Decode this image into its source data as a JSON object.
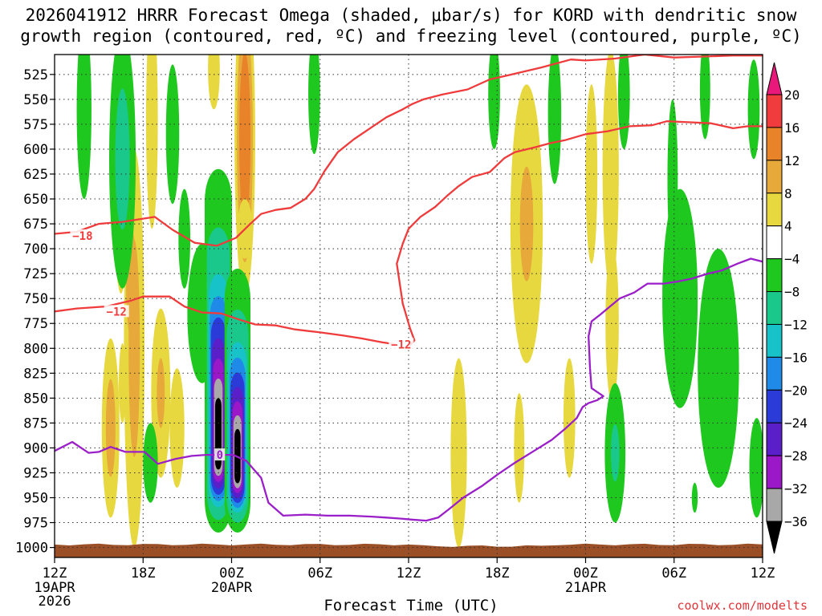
{
  "title": "2026041912 HRRR Forecast Omega (shaded, μbar/s) for KORD with dendritic snow\ngrowth region (contoured, red, ºC) and freezing level (contoured, purple, ºC)",
  "credit": "coolwx.com/modelts",
  "chart_data": {
    "type": "heatmap",
    "title": "2026041912 HRRR Forecast Omega (shaded, μbar/s) for KORD with dendritic snow growth region (contoured, red, ºC) and freezing level (contoured, purple, ºC)",
    "xlabel": "Forecast Time (UTC)",
    "ylabel": "",
    "x_unit": "forecast hour",
    "xlim": [
      0,
      48
    ],
    "ylim": [
      1010,
      505
    ],
    "y_axis": "pressure (mb), decreasing upward",
    "grid": true,
    "x_ticks": [
      {
        "hour": 0,
        "label": "12Z",
        "sub": [
          "19APR",
          "2026"
        ]
      },
      {
        "hour": 6,
        "label": "18Z",
        "sub": []
      },
      {
        "hour": 12,
        "label": "00Z",
        "sub": [
          "20APR"
        ]
      },
      {
        "hour": 18,
        "label": "06Z",
        "sub": []
      },
      {
        "hour": 24,
        "label": "12Z",
        "sub": []
      },
      {
        "hour": 30,
        "label": "18Z",
        "sub": []
      },
      {
        "hour": 36,
        "label": "00Z",
        "sub": [
          "21APR"
        ]
      },
      {
        "hour": 42,
        "label": "06Z",
        "sub": []
      },
      {
        "hour": 48,
        "label": "12Z",
        "sub": []
      }
    ],
    "y_ticks": [
      525,
      550,
      575,
      600,
      625,
      650,
      675,
      700,
      725,
      750,
      775,
      800,
      825,
      850,
      875,
      900,
      925,
      950,
      975,
      1000
    ],
    "colorbar": {
      "placement": "right",
      "unit": "μbar/s",
      "labels": [
        "20",
        "16",
        "12",
        "8",
        "4",
        "−4",
        "−8",
        "−12",
        "−16",
        "−20",
        "−24",
        "−28",
        "−32",
        "−36"
      ],
      "bins": [
        {
          "low": 20,
          "high": null,
          "color": "#e8197a"
        },
        {
          "low": 16,
          "high": 20,
          "color": "#f03c3c"
        },
        {
          "low": 12,
          "high": 16,
          "color": "#e8832a"
        },
        {
          "low": 8,
          "high": 12,
          "color": "#e6a93a"
        },
        {
          "low": 4,
          "high": 8,
          "color": "#e8d840"
        },
        {
          "low": -4,
          "high": 4,
          "color": "#ffffff"
        },
        {
          "low": -8,
          "high": -4,
          "color": "#1fc81f"
        },
        {
          "low": -12,
          "high": -8,
          "color": "#19c88a"
        },
        {
          "low": -16,
          "high": -12,
          "color": "#17c3c8"
        },
        {
          "low": -20,
          "high": -16,
          "color": "#1f8ae8"
        },
        {
          "low": -24,
          "high": -20,
          "color": "#2b3bd8"
        },
        {
          "low": -28,
          "high": -24,
          "color": "#5a1fc8"
        },
        {
          "low": -32,
          "high": -28,
          "color": "#9a18c8"
        },
        {
          "low": -36,
          "high": -32,
          "color": "#a8a8a8"
        },
        {
          "low": null,
          "high": -36,
          "color": "#000000"
        }
      ]
    },
    "omega_cells": [
      {
        "x": 4.5,
        "p": 635,
        "dx": 0.5,
        "dp": 110,
        "levels": [
          6,
          7
        ]
      },
      {
        "x": 4.6,
        "p": 835,
        "dx": 0.25,
        "dp": 40,
        "levels": [
          5
        ]
      },
      {
        "x": 3.8,
        "p": 880,
        "dx": 0.6,
        "dp": 90,
        "levels": [
          5,
          7,
          9,
          11
        ]
      },
      {
        "x": 5.4,
        "p": 800,
        "dx": 0.7,
        "dp": 200,
        "levels": [
          5,
          7,
          9,
          11
        ]
      },
      {
        "x": 5.2,
        "p": 735,
        "dx": 0.35,
        "dp": 55,
        "levels": [
          10
        ]
      },
      {
        "x": 6.6,
        "p": 570,
        "dx": 0.4,
        "dp": 110,
        "levels": [
          5,
          7
        ]
      },
      {
        "x": 7.2,
        "p": 845,
        "dx": 0.65,
        "dp": 85,
        "levels": [
          5,
          7,
          9
        ]
      },
      {
        "x": 8.3,
        "p": 880,
        "dx": 0.5,
        "dp": 60,
        "levels": [
          5
        ]
      },
      {
        "x": 10.8,
        "p": 520,
        "dx": 0.4,
        "dp": 40,
        "levels": [
          5
        ]
      },
      {
        "x": 12.9,
        "p": 590,
        "dx": 0.7,
        "dp": 160,
        "levels": [
          5,
          9,
          12,
          15
        ]
      },
      {
        "x": 12.9,
        "p": 680,
        "dx": 0.5,
        "dp": 30,
        "levels": [
          5
        ]
      },
      {
        "x": 27.4,
        "p": 905,
        "dx": 0.55,
        "dp": 95,
        "levels": [
          5,
          7
        ]
      },
      {
        "x": 31.5,
        "p": 900,
        "dx": 0.35,
        "dp": 55,
        "levels": [
          5
        ]
      },
      {
        "x": 32.0,
        "p": 675,
        "dx": 1.1,
        "dp": 140,
        "levels": [
          5,
          7,
          9
        ]
      },
      {
        "x": 34.9,
        "p": 870,
        "dx": 0.4,
        "dp": 60,
        "levels": [
          5
        ]
      },
      {
        "x": 36.4,
        "p": 625,
        "dx": 0.4,
        "dp": 90,
        "levels": [
          5
        ]
      },
      {
        "x": 37.7,
        "p": 620,
        "dx": 0.55,
        "dp": 120,
        "levels": [
          5
        ]
      },
      {
        "x": 37.8,
        "p": 775,
        "dx": 0.45,
        "dp": 80,
        "levels": [
          5
        ]
      },
      {
        "x": 2.0,
        "p": 560,
        "dx": 0.5,
        "dp": 90,
        "levels": [
          -5,
          -7
        ]
      },
      {
        "x": 4.6,
        "p": 610,
        "dx": 0.9,
        "dp": 130,
        "levels": [
          -5,
          -7,
          -9,
          -11
        ]
      },
      {
        "x": 8.0,
        "p": 585,
        "dx": 0.45,
        "dp": 70,
        "levels": [
          -5
        ]
      },
      {
        "x": 6.5,
        "p": 915,
        "dx": 0.5,
        "dp": 40,
        "levels": [
          -5
        ]
      },
      {
        "x": 8.8,
        "p": 690,
        "dx": 0.4,
        "dp": 50,
        "levels": [
          -5
        ]
      },
      {
        "x": 10.0,
        "p": 765,
        "dx": 1.0,
        "dp": 70,
        "levels": [
          -5
        ]
      },
      {
        "x": 17.6,
        "p": 545,
        "dx": 0.4,
        "dp": 60,
        "levels": [
          -5
        ]
      },
      {
        "x": 29.8,
        "p": 545,
        "dx": 0.4,
        "dp": 55,
        "levels": [
          -5
        ]
      },
      {
        "x": 33.9,
        "p": 565,
        "dx": 0.45,
        "dp": 70,
        "levels": [
          -5
        ]
      },
      {
        "x": 38.6,
        "p": 545,
        "dx": 0.4,
        "dp": 55,
        "levels": [
          -5
        ]
      },
      {
        "x": 44.1,
        "p": 540,
        "dx": 0.35,
        "dp": 50,
        "levels": [
          -5
        ]
      },
      {
        "x": 47.4,
        "p": 560,
        "dx": 0.4,
        "dp": 50,
        "levels": [
          -5
        ]
      },
      {
        "x": 41.9,
        "p": 630,
        "dx": 0.35,
        "dp": 80,
        "levels": [
          -5
        ]
      },
      {
        "x": 42.4,
        "p": 750,
        "dx": 1.2,
        "dp": 110,
        "levels": [
          -5
        ]
      },
      {
        "x": 45.0,
        "p": 820,
        "dx": 1.4,
        "dp": 120,
        "levels": [
          -5
        ]
      },
      {
        "x": 47.6,
        "p": 920,
        "dx": 0.5,
        "dp": 50,
        "levels": [
          -5
        ]
      },
      {
        "x": 38.0,
        "p": 905,
        "dx": 0.7,
        "dp": 70,
        "levels": [
          -5,
          -7,
          -9
        ]
      },
      {
        "x": 43.4,
        "p": 950,
        "dx": 0.2,
        "dp": 15,
        "levels": [
          -5
        ]
      }
    ],
    "strong_columns": [
      {
        "x": 11.1,
        "p_top": 620,
        "p_bottom": 985,
        "core": 870
      },
      {
        "x": 12.4,
        "p_top": 720,
        "p_bottom": 985,
        "core": 895
      }
    ],
    "ground": {
      "p_top": 997,
      "color": "#9a4f27"
    },
    "contours": [
      {
        "name": "dendritic snow growth region",
        "value": "-18",
        "unit": "ºC",
        "color": "#ef3b3b",
        "label": "−18",
        "label_at": [
          1.9,
          687
        ],
        "points": [
          [
            0,
            685
          ],
          [
            1.5,
            683
          ],
          [
            3.0,
            675
          ],
          [
            4.6,
            673
          ],
          [
            6.8,
            668
          ],
          [
            8.0,
            681
          ],
          [
            9.5,
            694
          ],
          [
            11.0,
            697
          ],
          [
            12.3,
            689
          ],
          [
            13.2,
            676
          ],
          [
            14.0,
            665
          ],
          [
            15.0,
            661
          ],
          [
            16.0,
            659
          ],
          [
            17.0,
            650
          ],
          [
            17.6,
            640
          ],
          [
            18.3,
            622
          ],
          [
            19.2,
            603
          ],
          [
            20.3,
            590
          ],
          [
            21.5,
            578
          ],
          [
            22.5,
            568
          ],
          [
            23.6,
            560
          ],
          [
            24.2,
            555
          ],
          [
            25.0,
            550
          ],
          [
            26.3,
            545
          ],
          [
            28.0,
            540
          ],
          [
            29.5,
            530
          ],
          [
            31.0,
            525
          ],
          [
            33.0,
            518
          ],
          [
            35.0,
            510
          ],
          [
            36.0,
            511
          ],
          [
            38.0,
            509
          ],
          [
            40.0,
            505
          ],
          [
            42.0,
            508
          ],
          [
            44.0,
            507
          ],
          [
            46.0,
            506
          ],
          [
            48.0,
            506
          ]
        ]
      },
      {
        "name": "dendritic snow growth region",
        "value": "-12",
        "unit": "ºC",
        "color": "#ef3b3b",
        "label": "−12",
        "label_at": [
          4.2,
          763
        ],
        "points": [
          [
            0,
            763
          ],
          [
            1.5,
            760
          ],
          [
            3.5,
            758
          ],
          [
            5.2,
            752
          ],
          [
            6.0,
            748
          ],
          [
            7.8,
            748
          ],
          [
            8.8,
            758
          ],
          [
            10.0,
            764
          ],
          [
            11.3,
            765
          ],
          [
            12.5,
            771
          ],
          [
            13.6,
            776
          ],
          [
            15.0,
            777
          ],
          [
            16.3,
            781
          ],
          [
            18.0,
            784
          ],
          [
            19.5,
            787
          ],
          [
            20.8,
            790
          ],
          [
            22.2,
            794
          ],
          [
            23.1,
            796
          ]
        ]
      },
      {
        "name": "dendritic snow growth region",
        "value": "-12",
        "unit": "ºC",
        "color": "#ef3b3b",
        "label": "−12",
        "label_at": [
          23.5,
          796
        ],
        "points": [
          [
            24.1,
            797
          ],
          [
            24.4,
            792
          ],
          [
            24.1,
            780
          ],
          [
            23.6,
            755
          ],
          [
            23.2,
            715
          ],
          [
            23.6,
            695
          ],
          [
            24.0,
            680
          ],
          [
            24.8,
            668
          ],
          [
            25.8,
            658
          ],
          [
            26.6,
            647
          ],
          [
            27.4,
            637
          ],
          [
            28.3,
            628
          ],
          [
            29.5,
            623
          ],
          [
            30.5,
            609
          ],
          [
            31.2,
            603
          ],
          [
            32.6,
            598
          ],
          [
            33.6,
            594
          ],
          [
            34.6,
            591
          ],
          [
            36.0,
            585
          ],
          [
            37.5,
            582
          ],
          [
            39.0,
            577
          ],
          [
            40.5,
            576
          ],
          [
            41.5,
            572
          ],
          [
            43.0,
            573
          ],
          [
            44.5,
            574
          ],
          [
            46.0,
            579
          ],
          [
            47.0,
            577
          ],
          [
            48.0,
            577
          ]
        ]
      },
      {
        "name": "freezing level",
        "value": "0",
        "unit": "ºC",
        "color": "#9b1fc9",
        "label": "0",
        "label_at": [
          11.2,
          907
        ],
        "points": [
          [
            0,
            903
          ],
          [
            1.2,
            894
          ],
          [
            2.3,
            905
          ],
          [
            3.0,
            904
          ],
          [
            3.8,
            899
          ],
          [
            4.8,
            904
          ],
          [
            6.1,
            904
          ],
          [
            7.0,
            916
          ],
          [
            8.2,
            911
          ],
          [
            9.3,
            908
          ],
          [
            10.3,
            907
          ],
          [
            11.0,
            907
          ],
          [
            12.1,
            907
          ],
          [
            13.0,
            913
          ],
          [
            14.0,
            930
          ],
          [
            14.5,
            955
          ],
          [
            15.5,
            968
          ],
          [
            17.0,
            967
          ],
          [
            18.5,
            968
          ],
          [
            20.0,
            968
          ],
          [
            21.5,
            969
          ],
          [
            22.5,
            970
          ],
          [
            23.5,
            971
          ],
          [
            24.2,
            972
          ],
          [
            25.2,
            973
          ],
          [
            26.0,
            970
          ],
          [
            26.7,
            962
          ],
          [
            27.7,
            950
          ],
          [
            29.0,
            938
          ],
          [
            30.0,
            927
          ],
          [
            31.2,
            915
          ],
          [
            32.5,
            903
          ],
          [
            33.7,
            892
          ],
          [
            34.6,
            881
          ],
          [
            35.4,
            870
          ],
          [
            35.8,
            859
          ],
          [
            36.2,
            855
          ],
          [
            36.8,
            852
          ],
          [
            37.2,
            848
          ],
          [
            36.4,
            840
          ],
          [
            36.3,
            820
          ],
          [
            36.2,
            788
          ],
          [
            36.4,
            773
          ],
          [
            37.0,
            766
          ],
          [
            38.3,
            750
          ],
          [
            39.3,
            744
          ],
          [
            40.2,
            735
          ],
          [
            41.3,
            735
          ],
          [
            42.2,
            733
          ],
          [
            43.2,
            730
          ],
          [
            44.3,
            725
          ],
          [
            45.2,
            722
          ],
          [
            46.3,
            715
          ],
          [
            47.2,
            710
          ],
          [
            48.0,
            713
          ]
        ]
      }
    ]
  }
}
